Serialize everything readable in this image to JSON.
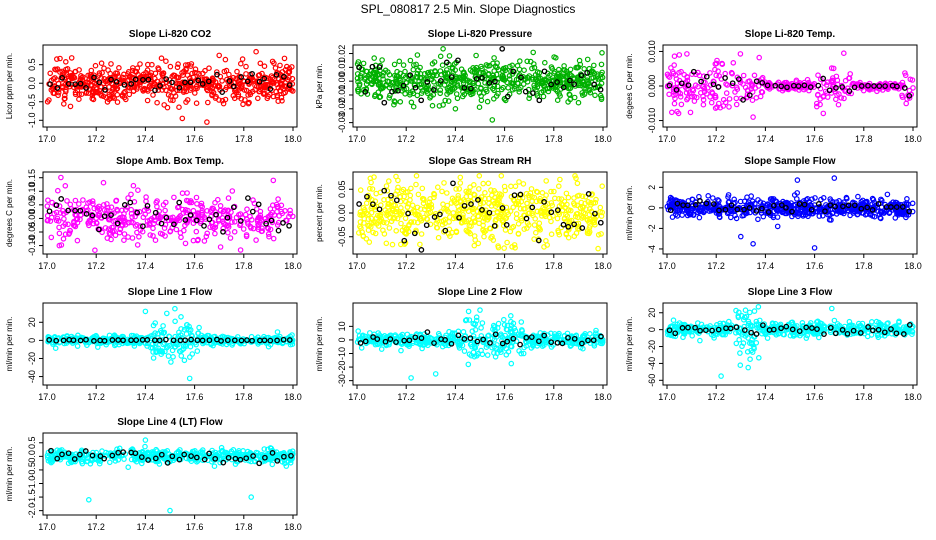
{
  "figure_title": "SPL_080817  2.5 Min. Slope Diagnostics",
  "chart_data": [
    {
      "type": "scatter",
      "title": "Slope Li-820 CO2",
      "ylabel": "Licor ppm per min.",
      "color": "#ff0000",
      "xlim": [
        17.0,
        18.0
      ],
      "ylim": [
        -1.1,
        0.95
      ],
      "xticks": [
        "17.0",
        "17.2",
        "17.4",
        "17.6",
        "17.8",
        "18.0"
      ],
      "yticks": [
        {
          "v": -1.0,
          "label": "-1.0"
        },
        {
          "v": -0.5,
          "label": "-0.5"
        },
        {
          "v": 0.0,
          "label": "0.0"
        },
        {
          "v": 0.5,
          "label": "0.5"
        }
      ],
      "sim": {
        "n": 600,
        "spread": 0.25,
        "black_spread": 0.12,
        "outliers": [
          [
            17.55,
            -0.95
          ],
          [
            17.65,
            -1.05
          ],
          [
            17.85,
            0.85
          ],
          [
            17.04,
            0.65
          ],
          [
            17.7,
            0.75
          ]
        ]
      }
    },
    {
      "type": "scatter",
      "title": "Slope Li-820 Pressure",
      "ylabel": "kPa per min.",
      "color": "#00b000",
      "xlim": [
        17.0,
        18.0
      ],
      "ylim": [
        -0.031,
        0.024
      ],
      "xticks": [
        "17.0",
        "17.2",
        "17.4",
        "17.6",
        "17.8",
        "18.0"
      ],
      "yticks": [
        {
          "v": -0.03,
          "label": "-0.03"
        },
        {
          "v": -0.02,
          "label": "-0.02"
        },
        {
          "v": -0.01,
          "label": "-0.01"
        },
        {
          "v": 0.0,
          "label": "0.00"
        },
        {
          "v": 0.01,
          "label": "0.01"
        },
        {
          "v": 0.02,
          "label": "0.02"
        }
      ],
      "sim": {
        "n": 600,
        "spread": 0.007,
        "black_spread": 0.007,
        "outliers": [
          [
            17.4,
            -0.02
          ],
          [
            17.55,
            -0.028
          ],
          [
            17.15,
            -0.017
          ]
        ]
      }
    },
    {
      "type": "scatter",
      "title": "Slope Li-820 Temp.",
      "ylabel": "degees C per min.",
      "color": "#ff00ff",
      "xlim": [
        17.0,
        18.0
      ],
      "ylim": [
        -0.011,
        0.011
      ],
      "xticks": [
        "17.0",
        "17.2",
        "17.4",
        "17.6",
        "17.8",
        "18.0"
      ],
      "yticks": [
        {
          "v": -0.01,
          "label": "-0.010"
        },
        {
          "v": 0.0,
          "label": "0.000"
        },
        {
          "v": 0.01,
          "label": "0.010"
        }
      ],
      "sim": {
        "n": 420,
        "spread": 0.0035,
        "black_spread": 0.002,
        "quiet": [
          [
            17.4,
            17.6
          ],
          [
            17.75,
            17.95
          ]
        ],
        "outliers": [
          [
            17.35,
            -0.009
          ],
          [
            17.05,
            0.009
          ]
        ]
      }
    },
    {
      "type": "scatter",
      "title": "Slope Amb. Box Temp.",
      "ylabel": "degrees C per min.",
      "color": "#ff00ff",
      "xlim": [
        17.0,
        18.0
      ],
      "ylim": [
        -0.12,
        0.16
      ],
      "xticks": [
        "17.0",
        "17.2",
        "17.4",
        "17.6",
        "17.8",
        "18.0"
      ],
      "yticks": [
        {
          "v": -0.1,
          "label": "-0.10"
        },
        {
          "v": -0.05,
          "label": "-0.05"
        },
        {
          "v": 0.0,
          "label": "0.00"
        },
        {
          "v": 0.05,
          "label": "0.05"
        },
        {
          "v": 0.1,
          "label": "0.10"
        },
        {
          "v": 0.15,
          "label": "0.15"
        }
      ],
      "sim": {
        "n": 420,
        "spread": 0.045,
        "black_spread": 0.035,
        "outliers": [
          [
            17.92,
            0.14
          ],
          [
            17.05,
            -0.1
          ]
        ]
      }
    },
    {
      "type": "scatter",
      "title": "Slope Gas Stream RH",
      "ylabel": "percent per min.",
      "color": "#ffff00",
      "xlim": [
        17.0,
        18.0
      ],
      "ylim": [
        -0.08,
        0.08
      ],
      "xticks": [
        "17.0",
        "17.2",
        "17.4",
        "17.6",
        "17.8",
        "18.0"
      ],
      "yticks": [
        {
          "v": -0.05,
          "label": "-0.05"
        },
        {
          "v": 0.0,
          "label": "0.00"
        },
        {
          "v": 0.05,
          "label": "0.05"
        }
      ],
      "sim": {
        "n": 600,
        "spread": 0.03,
        "black_spread": 0.03,
        "outliers": [
          [
            17.98,
            -0.075
          ],
          [
            17.42,
            0.075
          ]
        ]
      }
    },
    {
      "type": "scatter",
      "title": "Slope Sample Flow",
      "ylabel": "ml/min per min.",
      "color": "#0000ff",
      "xlim": [
        17.0,
        18.0
      ],
      "ylim": [
        -4.2,
        3.2
      ],
      "xticks": [
        "17.0",
        "17.2",
        "17.4",
        "17.6",
        "17.8",
        "18.0"
      ],
      "yticks": [
        {
          "v": -4,
          "label": "-4"
        },
        {
          "v": -2,
          "label": "-2"
        },
        {
          "v": 0,
          "label": "0"
        },
        {
          "v": 2,
          "label": "2"
        }
      ],
      "sim": {
        "n": 600,
        "spread": 0.45,
        "black_spread": 0.3,
        "outliers": [
          [
            17.35,
            -3.5
          ],
          [
            17.6,
            -3.9
          ],
          [
            17.68,
            2.9
          ],
          [
            17.53,
            2.7
          ],
          [
            17.3,
            -2.8
          ],
          [
            17.45,
            -1.8
          ]
        ]
      }
    },
    {
      "type": "scatter",
      "title": "Slope Line 1 Flow",
      "ylabel": "ml/min per min.",
      "color": "#00ffff",
      "xlim": [
        17.0,
        18.0
      ],
      "ylim": [
        -46,
        38
      ],
      "xticks": [
        "17.0",
        "17.2",
        "17.4",
        "17.6",
        "17.8",
        "18.0"
      ],
      "yticks": [
        {
          "v": -40,
          "label": "-40"
        },
        {
          "v": -20,
          "label": "-20"
        },
        {
          "v": 0,
          "label": "0"
        },
        {
          "v": 20,
          "label": "20"
        }
      ],
      "sim": {
        "n": 500,
        "spread": 2.5,
        "black_spread": 0.5,
        "burst": [
          17.42,
          17.62,
          20
        ],
        "outliers": [
          [
            17.58,
            -42
          ],
          [
            17.52,
            35
          ],
          [
            17.4,
            32
          ]
        ]
      }
    },
    {
      "type": "scatter",
      "title": "Slope Line 2 Flow",
      "ylabel": "ml/min per min.",
      "color": "#00ffff",
      "xlim": [
        17.0,
        18.0
      ],
      "ylim": [
        -31,
        25
      ],
      "xticks": [
        "17.0",
        "17.2",
        "17.4",
        "17.6",
        "17.8",
        "18.0"
      ],
      "yticks": [
        {
          "v": -30,
          "label": "-30"
        },
        {
          "v": -20,
          "label": "-20"
        },
        {
          "v": -10,
          "label": "-10"
        },
        {
          "v": 0,
          "label": "0"
        },
        {
          "v": 10,
          "label": "10"
        }
      ],
      "sim": {
        "n": 500,
        "spread": 2.5,
        "black_spread": 2,
        "burst": [
          17.42,
          17.68,
          14
        ],
        "outliers": [
          [
            17.22,
            -28
          ],
          [
            17.32,
            -25
          ],
          [
            17.5,
            22
          ]
        ]
      }
    },
    {
      "type": "scatter",
      "title": "Slope Line 3 Flow",
      "ylabel": "ml/min per min.",
      "color": "#00ffff",
      "xlim": [
        17.0,
        18.0
      ],
      "ylim": [
        -62,
        28
      ],
      "xticks": [
        "17.0",
        "17.2",
        "17.4",
        "17.6",
        "17.8",
        "18.0"
      ],
      "yticks": [
        {
          "v": -60,
          "label": "-60"
        },
        {
          "v": -40,
          "label": "-40"
        },
        {
          "v": -20,
          "label": "-20"
        },
        {
          "v": 0,
          "label": "0"
        },
        {
          "v": 20,
          "label": "20"
        }
      ],
      "sim": {
        "n": 500,
        "spread": 4,
        "black_spread": 3,
        "burst": [
          17.28,
          17.38,
          25
        ],
        "outliers": [
          [
            17.22,
            -55
          ],
          [
            17.33,
            -45
          ],
          [
            17.67,
            25
          ]
        ]
      }
    },
    {
      "type": "scatter",
      "title": "Slope Line 4 (LT) Flow",
      "ylabel": "ml/min per min.",
      "color": "#00ffff",
      "xlim": [
        17.0,
        18.0
      ],
      "ylim": [
        -2.05,
        0.75
      ],
      "xticks": [
        "17.0",
        "17.2",
        "17.4",
        "17.6",
        "17.8",
        "18.0"
      ],
      "yticks": [
        {
          "v": -2.0,
          "label": "-2.0"
        },
        {
          "v": -1.5,
          "label": "-1.5"
        },
        {
          "v": -1.0,
          "label": "-1.0"
        },
        {
          "v": -0.5,
          "label": "-0.5"
        },
        {
          "v": 0.0,
          "label": "0.0"
        },
        {
          "v": 0.5,
          "label": "0.5"
        }
      ],
      "sim": {
        "n": 500,
        "spread": 0.12,
        "black_spread": 0.12,
        "outliers": [
          [
            17.17,
            -1.6
          ],
          [
            17.5,
            -2.0
          ],
          [
            17.83,
            -1.5
          ],
          [
            17.4,
            0.6
          ],
          [
            17.33,
            -0.4
          ]
        ]
      }
    }
  ]
}
